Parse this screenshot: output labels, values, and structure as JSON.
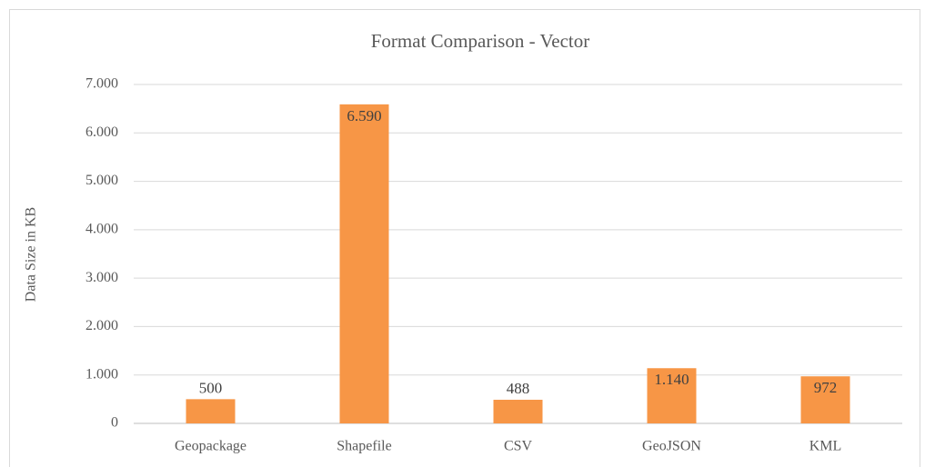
{
  "chart_data": {
    "type": "bar",
    "title": "Format Comparison - Vector",
    "y_label": "Data Size in KB",
    "categories": [
      "Geopackage",
      "Shapefile",
      "CSV",
      "GeoJSON",
      "KML"
    ],
    "values": [
      500,
      6590,
      488,
      1140,
      972
    ],
    "value_labels": [
      "500",
      "6.590",
      "488",
      "1.140",
      "972"
    ],
    "color": "#f79646",
    "ylim": [
      0,
      7000
    ],
    "yticks": [
      0,
      {
        "value": 1000,
        "label": "1.000"
      },
      {
        "value": 2000,
        "label": "2.000"
      },
      {
        "value": 3000,
        "label": "3.000"
      },
      {
        "value": 4000,
        "label": "4.000"
      },
      {
        "value": 5000,
        "label": "5.000"
      },
      {
        "value": 6000,
        "label": "6.000"
      },
      {
        "value": 7000,
        "label": "7.000"
      }
    ],
    "grid": true
  }
}
